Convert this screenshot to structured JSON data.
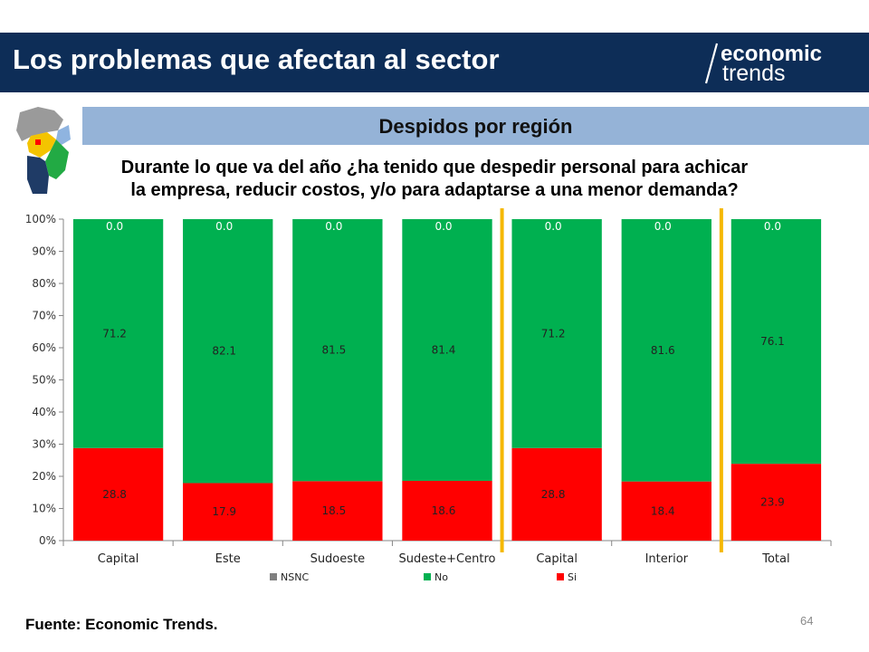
{
  "header": {
    "title": "Los problemas que afectan al sector",
    "logo_top": "economic",
    "logo_bottom": "trends",
    "background": "#0d2d57"
  },
  "subtitle": "Despidos por región",
  "question": {
    "line1": "Durante lo que va del año ¿ha tenido que despedir personal para achicar",
    "line2": "la empresa, reducir costos, y/o para adaptarse a una menor demanda?"
  },
  "chart_data": {
    "type": "bar",
    "stacked": true,
    "percent_stacked": true,
    "categories": [
      "Capital",
      "Este",
      "Sudoeste",
      "Sudeste+Centro",
      "Capital",
      "Interior",
      "Total"
    ],
    "series": [
      {
        "name": "NSNC",
        "color": "#808080",
        "values": [
          0.0,
          0.0,
          0.0,
          0.0,
          0.0,
          0.0,
          0.0
        ]
      },
      {
        "name": "No",
        "color": "#00b050",
        "values": [
          71.2,
          82.1,
          81.5,
          81.4,
          71.2,
          81.6,
          76.1
        ]
      },
      {
        "name": "Si",
        "color": "#ff0000",
        "values": [
          28.8,
          17.9,
          18.5,
          18.6,
          28.8,
          18.4,
          23.9
        ]
      }
    ],
    "y_ticks": [
      "0%",
      "10%",
      "20%",
      "30%",
      "40%",
      "50%",
      "60%",
      "70%",
      "80%",
      "90%",
      "100%"
    ],
    "ylim": [
      0,
      100
    ],
    "legend_position": "bottom",
    "separators_after_category_index": [
      3,
      5
    ],
    "separator_color": "#f5b800",
    "grid": false
  },
  "footer": {
    "source": "Fuente: Economic Trends.",
    "page_number": "64"
  }
}
